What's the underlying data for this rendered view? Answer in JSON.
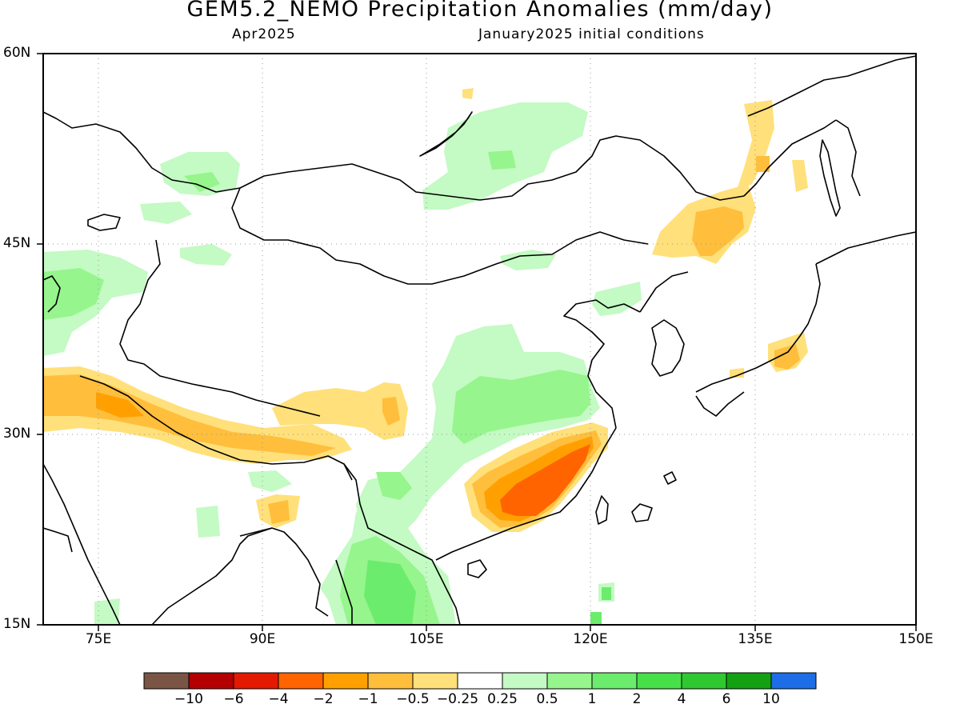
{
  "title": "GEM5.2_NEMO Precipitation Anomalies (mm/day)",
  "subtitle_left": "Apr2025",
  "subtitle_right": "January2025 initial conditions",
  "map": {
    "lat_labels": [
      "60N",
      "45N",
      "30N",
      "15N"
    ],
    "lon_labels": [
      "75E",
      "90E",
      "105E",
      "120E",
      "135E",
      "150E"
    ]
  },
  "colorbar": {
    "colors": [
      "#7a5546",
      "#b40000",
      "#e41a00",
      "#ff6400",
      "#ffa000",
      "#ffbe3c",
      "#ffe07a",
      "#ffffff",
      "#c4fac4",
      "#96f58c",
      "#6cec6c",
      "#48e048",
      "#30c830",
      "#13a013",
      "#1d6ee6"
    ],
    "labels": [
      "−10",
      "−6",
      "−4",
      "−2",
      "−1",
      "−0.5",
      "−0.25",
      "0.25",
      "0.5",
      "1",
      "2",
      "4",
      "6",
      "10"
    ]
  }
}
